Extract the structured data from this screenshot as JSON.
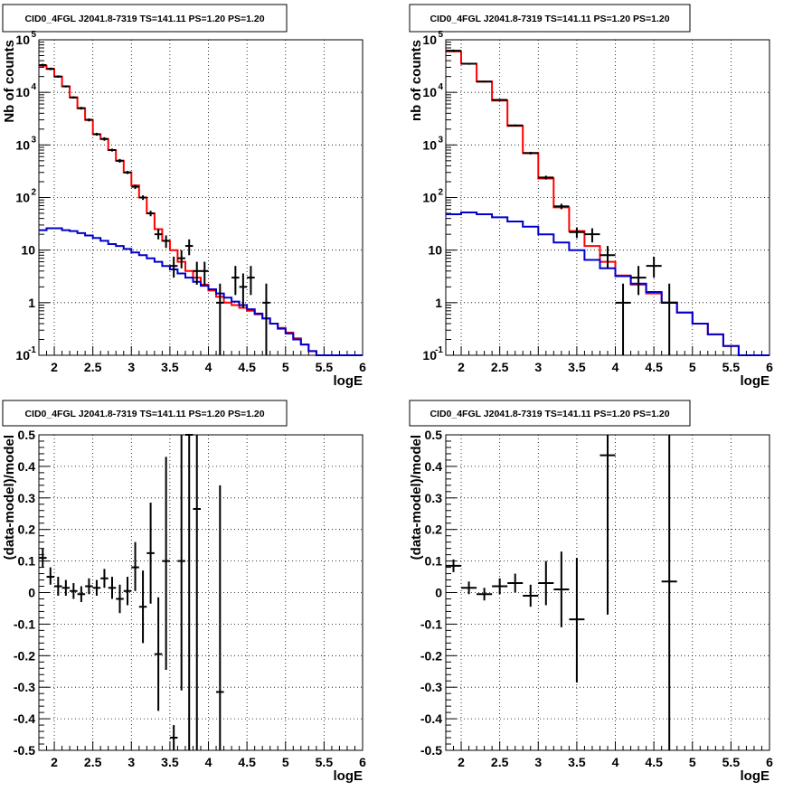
{
  "chart_data": [
    {
      "type": "line",
      "title": "CID0_4FGL J2041.8-7319 TS=141.11 PS=1.20 PS=1.20",
      "xlabel": "logE",
      "ylabel": "Nb of counts",
      "xlim": [
        1.8,
        6.0
      ],
      "ylim": [
        0.1,
        100000
      ],
      "log_y": true,
      "grid": true,
      "x_ticks": [
        "2",
        "2.5",
        "3",
        "3.5",
        "4",
        "4.5",
        "5",
        "5.5",
        "6"
      ],
      "y_ticks": [
        {
          "v": 0.1,
          "base": "10",
          "exp": "-1"
        },
        {
          "v": 1,
          "base": "1",
          "exp": ""
        },
        {
          "v": 10,
          "base": "10",
          "exp": ""
        },
        {
          "v": 100,
          "base": "10",
          "exp": "2"
        },
        {
          "v": 1000,
          "base": "10",
          "exp": "3"
        },
        {
          "v": 10000,
          "base": "10",
          "exp": "4"
        },
        {
          "v": 100000,
          "base": "10",
          "exp": "5"
        }
      ],
      "bin_width": 0.1,
      "series": [
        {
          "color": "#ff0000",
          "style": "step",
          "x": [
            1.85,
            1.95,
            2.05,
            2.15,
            2.25,
            2.35,
            2.45,
            2.55,
            2.65,
            2.75,
            2.85,
            2.95,
            3.05,
            3.15,
            3.25,
            3.35,
            3.45,
            3.55,
            3.65,
            3.75,
            3.85,
            3.95,
            4.05,
            4.15,
            4.25,
            4.35,
            4.45,
            4.55,
            4.65,
            4.75,
            4.85,
            4.95,
            5.05,
            5.15,
            5.25,
            5.35,
            5.45,
            5.55,
            5.65,
            5.75,
            5.85,
            5.95
          ],
          "y": [
            32000,
            28000,
            20000,
            13000,
            8000,
            5000,
            3000,
            1600,
            1300,
            800,
            500,
            300,
            170,
            100,
            50,
            25,
            15,
            10,
            6,
            4,
            3,
            2.2,
            1.7,
            1.3,
            1.0,
            0.9,
            0.8,
            0.7,
            0.6,
            0.5,
            0.4,
            0.33,
            0.27,
            0.21,
            0.16,
            0.12,
            0.1,
            0.1,
            0.1,
            0.1,
            0.1,
            0.1
          ]
        },
        {
          "color": "#0000cc",
          "style": "step",
          "x": [
            1.85,
            1.95,
            2.05,
            2.15,
            2.25,
            2.35,
            2.45,
            2.55,
            2.65,
            2.75,
            2.85,
            2.95,
            3.05,
            3.15,
            3.25,
            3.35,
            3.45,
            3.55,
            3.65,
            3.75,
            3.85,
            3.95,
            4.05,
            4.15,
            4.25,
            4.35,
            4.45,
            4.55,
            4.65,
            4.75,
            4.85,
            4.95,
            5.05,
            5.15,
            5.25,
            5.35,
            5.45,
            5.55,
            5.65,
            5.75,
            5.85,
            5.95
          ],
          "y": [
            24,
            26,
            26,
            24,
            23,
            21,
            19,
            17,
            15,
            13,
            12,
            10.5,
            9,
            8,
            7,
            6,
            5,
            4.3,
            3.6,
            3,
            2.5,
            2.1,
            1.8,
            1.5,
            1.25,
            1.05,
            0.9,
            0.75,
            0.62,
            0.5,
            0.4,
            0.32,
            0.26,
            0.2,
            0.16,
            0.12,
            0.1,
            0.1,
            0.1,
            0.1,
            0.1,
            0.1
          ]
        },
        {
          "color": "#000000",
          "style": "points",
          "x": [
            1.85,
            1.95,
            2.05,
            2.15,
            2.25,
            2.35,
            2.45,
            2.55,
            2.65,
            2.75,
            2.85,
            2.95,
            3.05,
            3.15,
            3.25,
            3.35,
            3.45,
            3.55,
            3.65,
            3.75,
            3.85,
            3.95,
            4.15,
            4.35,
            4.45,
            4.55,
            4.75
          ],
          "y": [
            33000,
            28000,
            20000,
            13000,
            8000,
            5000,
            3000,
            1600,
            1300,
            800,
            500,
            300,
            160,
            100,
            50,
            20,
            15,
            5,
            7,
            12,
            4,
            4,
            1,
            3,
            2,
            3,
            1
          ],
          "ylow": [
            31000,
            26500,
            19000,
            12400,
            7600,
            4700,
            2800,
            1500,
            1200,
            750,
            460,
            280,
            145,
            90,
            44,
            16,
            11,
            3,
            4.5,
            8,
            2.2,
            2.2,
            0.1,
            1.4,
            0.8,
            1.4,
            0.1
          ],
          "yhigh": [
            35000,
            29500,
            21000,
            13600,
            8400,
            5300,
            3200,
            1700,
            1400,
            850,
            540,
            320,
            175,
            110,
            56,
            25,
            19,
            7.5,
            10,
            16,
            6,
            6,
            2.3,
            5,
            3.6,
            5,
            2.3
          ]
        }
      ]
    },
    {
      "type": "line",
      "title": "CID0_4FGL J2041.8-7319 TS=141.11 PS=1.20 PS=1.20",
      "xlabel": "logE",
      "ylabel": "nb of counts",
      "xlim": [
        1.8,
        6.0
      ],
      "ylim": [
        0.1,
        100000
      ],
      "log_y": true,
      "grid": true,
      "x_ticks": [
        "2",
        "2.5",
        "3",
        "3.5",
        "4",
        "4.5",
        "5",
        "5.5",
        "6"
      ],
      "y_ticks": [
        {
          "v": 0.1,
          "base": "10",
          "exp": "-1"
        },
        {
          "v": 1,
          "base": "1",
          "exp": ""
        },
        {
          "v": 10,
          "base": "10",
          "exp": ""
        },
        {
          "v": 100,
          "base": "10",
          "exp": "2"
        },
        {
          "v": 1000,
          "base": "10",
          "exp": "3"
        },
        {
          "v": 10000,
          "base": "10",
          "exp": "4"
        },
        {
          "v": 100000,
          "base": "10",
          "exp": "5"
        }
      ],
      "bin_width": 0.2,
      "series": [
        {
          "color": "#ff0000",
          "style": "step",
          "x": [
            1.9,
            2.1,
            2.3,
            2.5,
            2.7,
            2.9,
            3.1,
            3.3,
            3.5,
            3.7,
            3.9,
            4.1,
            4.3,
            4.5,
            4.7,
            4.9,
            5.1,
            5.3,
            5.5,
            5.7,
            5.9
          ],
          "y": [
            60000,
            35000,
            16000,
            7000,
            2300,
            700,
            230,
            65,
            23,
            12,
            6,
            3.3,
            2.2,
            1.5,
            1.0,
            0.65,
            0.4,
            0.25,
            0.15,
            0.1,
            0.1
          ]
        },
        {
          "color": "#0000cc",
          "style": "step",
          "x": [
            1.9,
            2.1,
            2.3,
            2.5,
            2.7,
            2.9,
            3.1,
            3.3,
            3.5,
            3.7,
            3.9,
            4.1,
            4.3,
            4.5,
            4.7,
            4.9,
            5.1,
            5.3,
            5.5,
            5.7,
            5.9
          ],
          "y": [
            48,
            52,
            48,
            42,
            35,
            28,
            20,
            14,
            10,
            6.5,
            4.5,
            3.2,
            2.3,
            1.6,
            1.0,
            0.65,
            0.4,
            0.25,
            0.15,
            0.1,
            0.1
          ]
        },
        {
          "color": "#000000",
          "style": "points",
          "x": [
            1.9,
            2.1,
            2.3,
            2.5,
            2.7,
            2.9,
            3.1,
            3.3,
            3.5,
            3.7,
            3.9,
            4.1,
            4.3,
            4.5,
            4.7
          ],
          "y": [
            62000,
            35000,
            16000,
            7200,
            2350,
            700,
            240,
            68,
            22,
            20,
            8,
            1,
            3,
            5,
            1
          ],
          "ylow": [
            59000,
            33500,
            15400,
            6900,
            2250,
            660,
            220,
            60,
            17,
            14,
            4.5,
            0.1,
            1.4,
            3,
            0.1
          ],
          "yhigh": [
            65000,
            36500,
            16600,
            7500,
            2450,
            740,
            260,
            76,
            27,
            26,
            12,
            2.3,
            5,
            7.5,
            2.3
          ]
        }
      ]
    },
    {
      "type": "scatter",
      "title": "CID0_4FGL J2041.8-7319 TS=141.11 PS=1.20 PS=1.20",
      "xlabel": "logE",
      "ylabel": "(data-model)/model",
      "xlim": [
        1.8,
        6.0
      ],
      "ylim": [
        -0.5,
        0.5
      ],
      "grid": true,
      "x_ticks": [
        "2",
        "2.5",
        "3",
        "3.5",
        "4",
        "4.5",
        "5",
        "5.5",
        "6"
      ],
      "y_ticks": [
        "-0.5",
        "-0.4",
        "-0.3",
        "-0.2",
        "-0.1",
        "0",
        "0.1",
        "0.2",
        "0.3",
        "0.4",
        "0.5"
      ],
      "bin_width": 0.1,
      "series": [
        {
          "color": "#000000",
          "style": "points",
          "x": [
            1.85,
            1.95,
            2.05,
            2.15,
            2.25,
            2.35,
            2.45,
            2.55,
            2.65,
            2.75,
            2.85,
            2.95,
            3.05,
            3.15,
            3.25,
            3.35,
            3.45,
            3.55,
            3.65,
            3.75,
            3.85,
            4.15
          ],
          "y": [
            0.11,
            0.05,
            0.02,
            0.015,
            0.005,
            -0.005,
            0.02,
            0.015,
            0.045,
            0.015,
            -0.02,
            0.005,
            0.08,
            -0.045,
            0.125,
            -0.195,
            0.1,
            -0.46,
            0.1,
            0.5,
            0.265,
            -0.315
          ],
          "ylow": [
            0.08,
            0.025,
            -0.01,
            -0.01,
            -0.02,
            -0.03,
            -0.005,
            -0.01,
            0.015,
            -0.02,
            -0.065,
            -0.04,
            0.005,
            -0.16,
            -0.035,
            -0.375,
            -0.245,
            -0.5,
            -0.31,
            -0.5,
            -0.5,
            -0.5
          ],
          "yhigh": [
            0.14,
            0.08,
            0.05,
            0.04,
            0.03,
            0.02,
            0.045,
            0.04,
            0.075,
            0.05,
            0.025,
            0.05,
            0.16,
            0.07,
            0.285,
            -0.015,
            0.43,
            -0.42,
            0.5,
            0.5,
            0.5,
            0.34
          ]
        }
      ]
    },
    {
      "type": "scatter",
      "title": "CID0_4FGL J2041.8-7319 TS=141.11 PS=1.20 PS=1.20",
      "xlabel": "logE",
      "ylabel": "(data-model)/model",
      "xlim": [
        1.8,
        6.0
      ],
      "ylim": [
        -0.5,
        0.5
      ],
      "grid": true,
      "x_ticks": [
        "2",
        "2.5",
        "3",
        "3.5",
        "4",
        "4.5",
        "5",
        "5.5",
        "6"
      ],
      "y_ticks": [
        "-0.5",
        "-0.4",
        "-0.3",
        "-0.2",
        "-0.1",
        "0",
        "0.1",
        "0.2",
        "0.3",
        "0.4",
        "0.5"
      ],
      "bin_width": 0.2,
      "series": [
        {
          "color": "#000000",
          "style": "points",
          "x": [
            1.9,
            2.1,
            2.3,
            2.5,
            2.7,
            2.9,
            3.1,
            3.3,
            3.5,
            3.9,
            4.7
          ],
          "y": [
            0.085,
            0.015,
            -0.005,
            0.02,
            0.03,
            -0.01,
            0.03,
            0.01,
            -0.085,
            0.435,
            0.035
          ],
          "ylow": [
            0.065,
            -0.005,
            -0.025,
            -0.005,
            0.0,
            -0.045,
            -0.04,
            -0.11,
            -0.285,
            -0.07,
            -0.5
          ],
          "yhigh": [
            0.105,
            0.035,
            0.015,
            0.045,
            0.06,
            0.025,
            0.1,
            0.13,
            0.11,
            0.5,
            0.5
          ]
        }
      ]
    }
  ]
}
